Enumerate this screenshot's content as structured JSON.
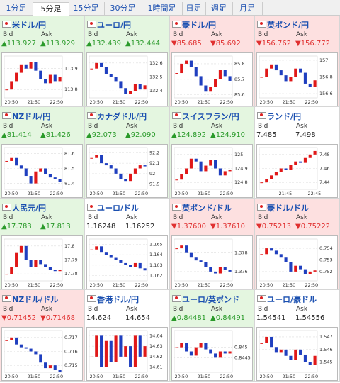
{
  "tabs": {
    "items": [
      "1分足",
      "5分足",
      "15分足",
      "30分足",
      "1時間足",
      "日足",
      "週足",
      "月足"
    ],
    "selected": 1
  },
  "labels": {
    "bid": "Bid",
    "ask": "Ask"
  },
  "pairs": [
    {
      "title": "米ドル/円",
      "bid": "▲113.927",
      "ask": "▲113.929",
      "color": "#2a9a2a",
      "bg": "#e4f6e0",
      "ylim": [
        113.76,
        113.96
      ],
      "yticks": [
        113.9,
        113.8
      ],
      "xticks": [
        "20:50",
        "21:50",
        "22:50"
      ],
      "values": [
        113.8,
        113.84,
        113.88,
        113.92,
        113.9,
        113.93,
        113.89,
        113.85,
        113.83,
        113.87,
        113.84,
        113.86
      ]
    },
    {
      "title": "ユーロ/円",
      "bid": "▲132.439",
      "ask": "▲132.444",
      "color": "#2a9a2a",
      "bg": "#e4f6e0",
      "ylim": [
        132.35,
        132.65
      ],
      "yticks": [
        132.6,
        132.5,
        132.4
      ],
      "xticks": [
        "20:50",
        "21:50",
        "22:50"
      ],
      "values": [
        132.56,
        132.6,
        132.57,
        132.52,
        132.5,
        132.47,
        132.42,
        132.38,
        132.4,
        132.45,
        132.41,
        132.44
      ]
    },
    {
      "title": "豪ドル/円",
      "bid": "▼85.685",
      "ask": "▼85.692",
      "color": "#e03030",
      "bg": "#fde0e0",
      "ylim": [
        85.58,
        85.85
      ],
      "yticks": [
        85.8,
        85.7,
        85.6
      ],
      "xticks": [
        "20:50",
        "21:50",
        "22:50"
      ],
      "values": [
        85.74,
        85.8,
        85.82,
        85.78,
        85.72,
        85.66,
        85.62,
        85.65,
        85.7,
        85.76,
        85.72,
        85.69
      ]
    },
    {
      "title": "英ポンド/円",
      "bid": "▼156.762",
      "ask": "▼156.772",
      "color": "#e03030",
      "bg": "#fde0e0",
      "ylim": [
        156.55,
        157.05
      ],
      "yticks": [
        157,
        156.8,
        156.6
      ],
      "xticks": [
        "20:50",
        "21:50",
        "22:50"
      ],
      "values": [
        156.8,
        156.9,
        156.95,
        156.88,
        156.82,
        156.75,
        156.8,
        156.9,
        156.85,
        156.72,
        156.68,
        156.76
      ]
    },
    {
      "title": "NZドル/円",
      "bid": "▲81.414",
      "ask": "▲81.426",
      "color": "#2a9a2a",
      "bg": "#e4f6e0",
      "ylim": [
        81.36,
        81.64
      ],
      "yticks": [
        81.6,
        81.5,
        81.4
      ],
      "xticks": [
        "20:50",
        "21:50",
        "22:50"
      ],
      "values": [
        81.55,
        81.57,
        81.52,
        81.5,
        81.45,
        81.4,
        81.48,
        81.5,
        81.46,
        81.44,
        81.43,
        81.41
      ]
    },
    {
      "title": "カナダドル/円",
      "bid": "▲92.073",
      "ask": "▲92.090",
      "color": "#2a9a2a",
      "bg": "#e4f6e0",
      "ylim": [
        91.85,
        92.25
      ],
      "yticks": [
        92.2,
        92.1,
        92,
        91.9
      ],
      "xticks": [
        "20:50",
        "21:50",
        "22:50"
      ],
      "values": [
        92.15,
        92.18,
        92.1,
        92.08,
        92.05,
        92,
        91.95,
        91.93,
        92,
        92.05,
        92.08,
        92.07
      ]
    },
    {
      "title": "スイスフラン/円",
      "bid": "▲124.892",
      "ask": "▲124.910",
      "color": "#2a9a2a",
      "bg": "#e4f6e0",
      "ylim": [
        124.75,
        125.05
      ],
      "yticks": [
        125,
        124.9,
        124.8
      ],
      "xticks": [
        "20:50",
        "21:50",
        "22:50"
      ],
      "values": [
        124.82,
        124.86,
        124.9,
        124.97,
        124.95,
        124.88,
        124.92,
        124.96,
        124.9,
        124.85,
        124.88,
        124.89
      ]
    },
    {
      "title": "ランド/円",
      "bid": "7.485",
      "ask": "7.498",
      "color": "#222222",
      "bg": "#ffffff",
      "ylim": [
        7.43,
        7.49
      ],
      "yticks": [
        7.48,
        7.46,
        7.44
      ],
      "xticks": [
        "21:45",
        "22:45"
      ],
      "values": [
        7.44,
        7.445,
        7.45,
        7.455,
        7.46,
        7.458,
        7.465,
        7.47,
        7.468,
        7.475,
        7.48,
        7.485
      ]
    },
    {
      "title": "人民元/円",
      "bid": "▲17.783",
      "ask": "▲17.813",
      "color": "#2a9a2a",
      "bg": "#e4f6e0",
      "ylim": [
        17.775,
        17.805
      ],
      "yticks": [
        17.8,
        17.79,
        17.78
      ],
      "xticks": [
        "20:50",
        "21:50",
        "22:50"
      ],
      "values": [
        17.78,
        17.785,
        17.795,
        17.8,
        17.79,
        17.785,
        17.79,
        17.787,
        17.785,
        17.783,
        17.782,
        17.783
      ]
    },
    {
      "title": "ユーロ/ドル",
      "bid": "1.16248",
      "ask": "1.16252",
      "color": "#222222",
      "bg": "#ffffff",
      "ylim": [
        1.1615,
        1.1655
      ],
      "yticks": [
        1.165,
        1.164,
        1.163,
        1.162
      ],
      "xticks": [
        "20:50",
        "21:50",
        "22:50"
      ],
      "values": [
        1.1645,
        1.1648,
        1.1642,
        1.164,
        1.1637,
        1.1635,
        1.1632,
        1.163,
        1.1628,
        1.1632,
        1.1627,
        1.1625
      ]
    },
    {
      "title": "英ポンド/ドル",
      "bid": "▼1.37600",
      "ask": "▼1.37610",
      "color": "#e03030",
      "bg": "#fde0e0",
      "ylim": [
        1.375,
        1.3795
      ],
      "yticks": [
        1.378,
        1.376
      ],
      "xticks": [
        "20:50",
        "21:50",
        "22:50"
      ],
      "values": [
        1.3785,
        1.3788,
        1.378,
        1.3775,
        1.3772,
        1.377,
        1.3765,
        1.376,
        1.3758,
        1.3765,
        1.3762,
        1.376
      ]
    },
    {
      "title": "豪ドル/ドル",
      "bid": "▼0.75213",
      "ask": "▼0.75222",
      "color": "#e03030",
      "bg": "#fde0e0",
      "ylim": [
        0.7512,
        0.7548
      ],
      "yticks": [
        0.754,
        0.753,
        0.752
      ],
      "xticks": [
        "20:50",
        "21:50",
        "22:50"
      ],
      "values": [
        0.7535,
        0.754,
        0.7538,
        0.7535,
        0.7532,
        0.7528,
        0.752,
        0.7525,
        0.7522,
        0.7518,
        0.752,
        0.7521
      ]
    },
    {
      "title": "NZドル/ドル",
      "bid": "▼0.71452",
      "ask": "▼0.71468",
      "color": "#e03030",
      "bg": "#fde0e0",
      "ylim": [
        0.7145,
        0.7175
      ],
      "yticks": [
        0.717,
        0.716,
        0.715
      ],
      "xticks": [
        "20:50",
        "21:50",
        "22:50"
      ],
      "values": [
        0.7168,
        0.717,
        0.7165,
        0.7163,
        0.7162,
        0.716,
        0.7158,
        0.7152,
        0.7148,
        0.715,
        0.7147,
        0.7145
      ]
    },
    {
      "title": "香港ドル/円",
      "bid": "14.624",
      "ask": "14.654",
      "color": "#222222",
      "bg": "#ffffff",
      "ylim": [
        14.605,
        14.645
      ],
      "yticks": [
        14.64,
        14.63,
        14.62,
        14.61
      ],
      "xticks": [
        "20:50",
        "21:50",
        "22:50"
      ],
      "values": [
        14.62,
        14.64,
        14.61,
        14.635,
        14.615,
        14.64,
        14.62,
        14.63,
        14.61,
        14.64,
        14.62,
        14.63
      ]
    },
    {
      "title": "ユーロ/英ポンド",
      "bid": "▲0.84481",
      "ask": "▲0.84491",
      "color": "#2a9a2a",
      "bg": "#e4f6e0",
      "ylim": [
        0.8438,
        0.8458
      ],
      "yticks": [
        0.845,
        0.8445
      ],
      "xticks": [
        "20:50",
        "21:50",
        "22:50"
      ],
      "values": [
        0.845,
        0.8452,
        0.8448,
        0.8446,
        0.845,
        0.8452,
        0.8449,
        0.8447,
        0.8445,
        0.8448,
        0.8447,
        0.8448
      ]
    },
    {
      "title": "ユーロ/豪ドル",
      "bid": "1.54541",
      "ask": "1.54556",
      "color": "#222222",
      "bg": "#ffffff",
      "ylim": [
        1.5442,
        1.5475
      ],
      "yticks": [
        1.547,
        1.546,
        1.545
      ],
      "xticks": [
        "20:50",
        "21:50",
        "22:50"
      ],
      "values": [
        1.5465,
        1.547,
        1.5462,
        1.5458,
        1.546,
        1.5455,
        1.5452,
        1.546,
        1.5456,
        1.545,
        1.5448,
        1.5455
      ]
    }
  ]
}
